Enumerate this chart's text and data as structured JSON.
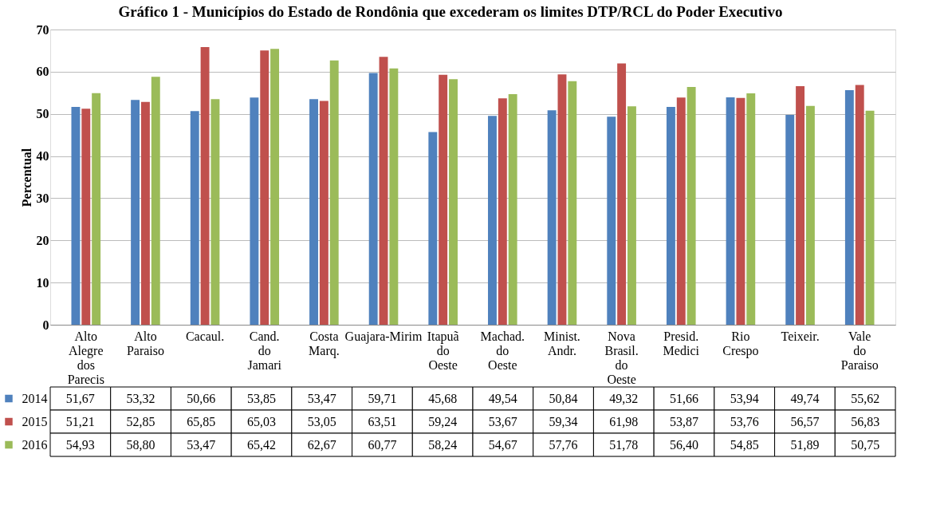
{
  "chart_data": {
    "type": "bar",
    "title": "Gráfico 1 - Municípios do Estado de Rondônia que excederam os limites DTP/RCL do Poder Executivo",
    "ylabel": "Percentual",
    "categories": [
      "Alto Alegre dos Parecis",
      "Alto Paraiso",
      "Cacaul.",
      "Cand. do Jamari",
      "Costa Marq.",
      "Guajara-Mirim",
      "Itapuã do Oeste",
      "Machad. do Oeste",
      "Minist. Andr.",
      "Nova Brasil. do Oeste",
      "Presid. Medici",
      "Rio Crespo",
      "Teixeir.",
      "Vale do Paraiso"
    ],
    "series": [
      {
        "name": "2014",
        "color": "#4f81bd",
        "values": [
          51.67,
          53.32,
          50.66,
          53.85,
          53.47,
          59.71,
          45.68,
          49.54,
          50.84,
          49.32,
          51.66,
          53.94,
          49.74,
          55.62
        ],
        "value_labels": [
          "51,67",
          "53,32",
          "50,66",
          "53,85",
          "53,47",
          "59,71",
          "45,68",
          "49,54",
          "50,84",
          "49,32",
          "51,66",
          "53,94",
          "49,74",
          "55,62"
        ]
      },
      {
        "name": "2015",
        "color": "#c0504d",
        "values": [
          51.21,
          52.85,
          65.85,
          65.03,
          53.05,
          63.51,
          59.24,
          53.67,
          59.34,
          61.98,
          53.87,
          53.76,
          56.57,
          56.83
        ],
        "value_labels": [
          "51,21",
          "52,85",
          "65,85",
          "65,03",
          "53,05",
          "63,51",
          "59,24",
          "53,67",
          "59,34",
          "61,98",
          "53,87",
          "53,76",
          "56,57",
          "56,83"
        ]
      },
      {
        "name": "2016",
        "color": "#9bbb59",
        "values": [
          54.93,
          58.8,
          53.47,
          65.42,
          62.67,
          60.77,
          58.24,
          54.67,
          57.76,
          51.78,
          56.4,
          54.85,
          51.89,
          50.75
        ],
        "value_labels": [
          "54,93",
          "58,80",
          "53,47",
          "65,42",
          "62,67",
          "60,77",
          "58,24",
          "54,67",
          "57,76",
          "51,78",
          "56,40",
          "54,85",
          "51,89",
          "50,75"
        ]
      }
    ],
    "ylim": [
      0,
      70
    ],
    "yticks": [
      0,
      10,
      20,
      30,
      40,
      50,
      60,
      70
    ],
    "grid": "y",
    "legend": "bottom left"
  }
}
